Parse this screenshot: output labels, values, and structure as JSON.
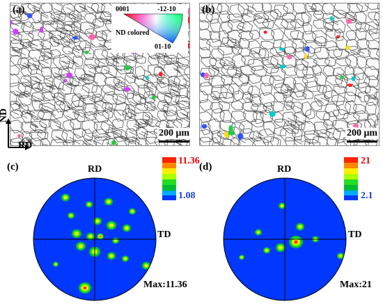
{
  "panels": {
    "a": {
      "label": "(a)",
      "scale": "200 μm"
    },
    "b": {
      "label": "(b)",
      "scale": "200 μm"
    },
    "c": {
      "label": "(c)",
      "rd": "RD",
      "td": "TD",
      "max_label": "Max:11.36",
      "legend_max": "11.36",
      "legend_min": "1.08",
      "legend_max_color": "#e60000",
      "legend_min_color": "#1c3fd8"
    },
    "d": {
      "label": "(d)",
      "rd": "RD",
      "td": "TD",
      "max_label": "Max:21",
      "legend_max": "21",
      "legend_min": "2.1",
      "legend_max_color": "#e60000",
      "legend_min_color": "#1c3fd8"
    }
  },
  "ipf_key": {
    "top_left": "0001",
    "top_right": "-12-10",
    "bottom": "01-10",
    "caption": "ND colored"
  },
  "axes_key": {
    "vertical": "ND",
    "horizontal": "RD"
  },
  "colors": {
    "pf_background": "#0038ff",
    "grain_boundary": "#333333"
  }
}
